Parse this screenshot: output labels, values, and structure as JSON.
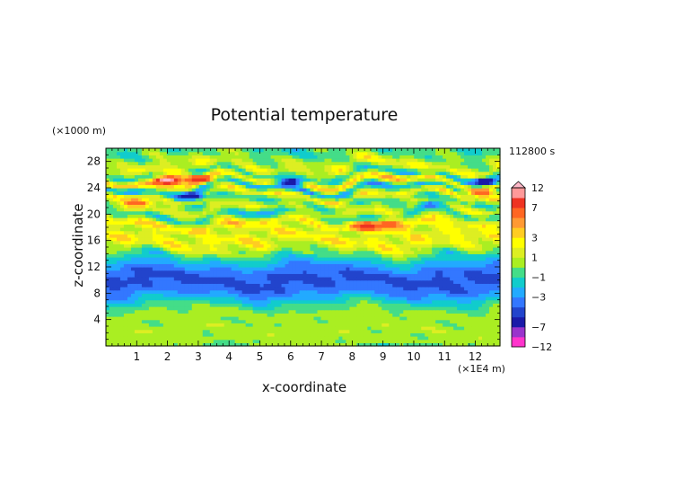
{
  "chart_data": {
    "type": "heatmap",
    "title": "Potential temperature",
    "xlabel": "x-coordinate",
    "ylabel": "z-coordinate",
    "x_unit": "(×1E4 m)",
    "y_unit": "(×1000 m)",
    "time_label": "112800 s",
    "xlim": [
      0,
      12.8
    ],
    "ylim": [
      0,
      30
    ],
    "x_ticks": [
      1,
      2,
      3,
      4,
      5,
      6,
      7,
      8,
      9,
      10,
      11,
      12
    ],
    "y_ticks": [
      4,
      8,
      12,
      16,
      20,
      24,
      28
    ],
    "colorbar": {
      "levels": [
        -12,
        -9,
        -7,
        -5,
        -4,
        -3,
        -2,
        -1,
        0,
        1,
        2,
        3,
        4,
        5,
        7,
        9,
        12
      ],
      "tick_labels": [
        12,
        7,
        3,
        1,
        -1,
        -3,
        -7,
        -12
      ],
      "colors": [
        "#ff33cc",
        "#9933cc",
        "#1a1aa8",
        "#2244cc",
        "#3377ff",
        "#22aaff",
        "#11cccc",
        "#44dd88",
        "#aaee22",
        "#ddee22",
        "#ffff00",
        "#ffcc22",
        "#ff9933",
        "#ff6622",
        "#ee3322",
        "#ff9999"
      ],
      "over_color": "#ffb8c8"
    },
    "z_profile": [
      {
        "z": 0,
        "value": 0.6
      },
      {
        "z": 1.5,
        "value": 0.3
      },
      {
        "z": 2.5,
        "value": 0.8
      },
      {
        "z": 3.5,
        "value": 0.2
      },
      {
        "z": 5,
        "value": 0.5
      },
      {
        "z": 6.2,
        "value": -0.7
      },
      {
        "z": 7.2,
        "value": -2.0
      },
      {
        "z": 8.5,
        "value": -3.8
      },
      {
        "z": 10,
        "value": -4.2
      },
      {
        "z": 11.3,
        "value": -3.8
      },
      {
        "z": 12.5,
        "value": -2.4
      },
      {
        "z": 13.8,
        "value": -0.6
      },
      {
        "z": 15,
        "value": 1.5
      },
      {
        "z": 16.3,
        "value": 2.5
      },
      {
        "z": 17.5,
        "value": 1.2
      },
      {
        "z": 18.5,
        "value": 3.0
      },
      {
        "z": 19.8,
        "value": -1.0
      },
      {
        "z": 20.8,
        "value": 1.5
      },
      {
        "z": 22,
        "value": -0.5
      },
      {
        "z": 23,
        "value": 2.2
      },
      {
        "z": 24,
        "value": -2.5
      },
      {
        "z": 25,
        "value": 3.8
      },
      {
        "z": 26,
        "value": -1.5
      },
      {
        "z": 27.2,
        "value": 2.0
      },
      {
        "z": 28.5,
        "value": 0.3
      },
      {
        "z": 30,
        "value": -0.8
      }
    ],
    "features": [
      {
        "x": 2.0,
        "z": 25.2,
        "value": 13
      },
      {
        "x": 3.0,
        "z": 25.4,
        "value": 9
      },
      {
        "x": 2.8,
        "z": 22.8,
        "value": -7
      },
      {
        "x": 6.0,
        "z": 25.0,
        "value": -7
      },
      {
        "x": 12.3,
        "z": 25.0,
        "value": -7
      },
      {
        "x": 8.5,
        "z": 18.3,
        "value": 8
      },
      {
        "x": 9.2,
        "z": 18.5,
        "value": 7
      },
      {
        "x": 1.0,
        "z": 21.8,
        "value": 7
      },
      {
        "x": 12.2,
        "z": 23.2,
        "value": 7
      },
      {
        "x": 10.5,
        "z": 21.5,
        "value": -4
      },
      {
        "x": 5.2,
        "z": 20.2,
        "value": -3
      }
    ]
  }
}
